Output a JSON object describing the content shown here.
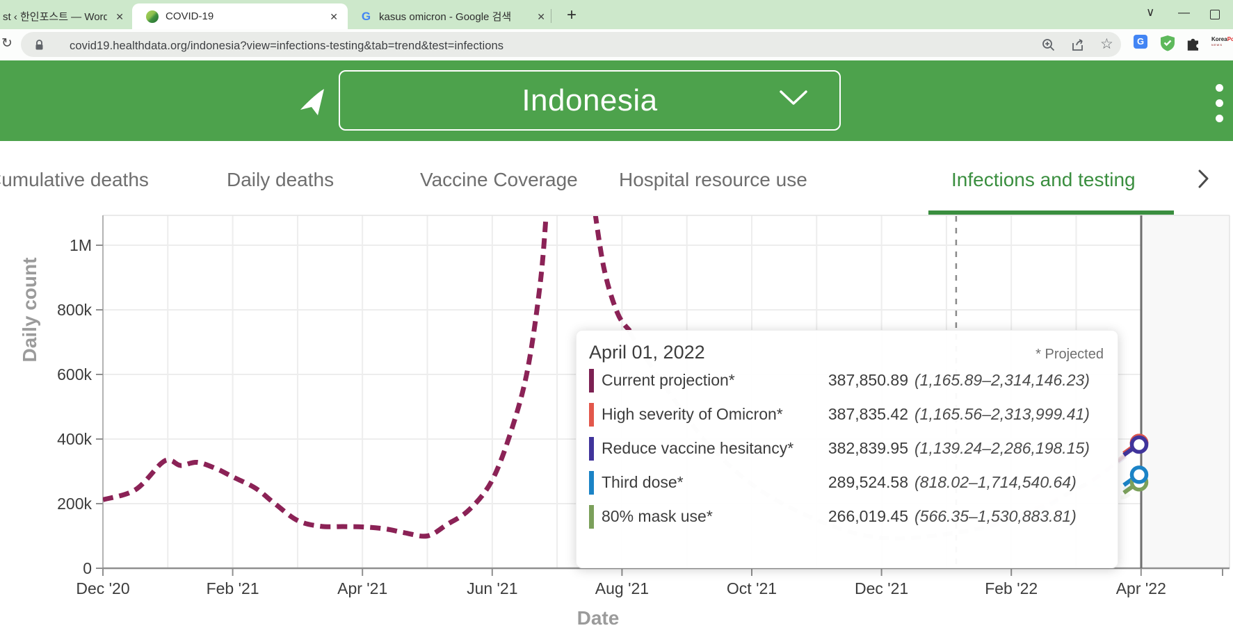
{
  "browser": {
    "tabs": [
      {
        "title": "st ‹ 한인포스트 — WordP",
        "close": "✕"
      },
      {
        "title": "COVID-19",
        "close": "✕"
      },
      {
        "title": "kasus omicron - Google 검색",
        "close": "✕"
      }
    ],
    "new_tab": "+",
    "window_controls": {
      "tab_search": "∨",
      "minimize": "—"
    },
    "address": {
      "reload": "↻",
      "url": "covid19.healthdata.org/indonesia?view=infections-testing&tab=trend&test=infections",
      "bookmark_star": "☆",
      "translate_glyph": "G",
      "koreapost_line1": "Korea",
      "koreapost_line1b": "Post",
      "koreapost_line2": "NEWS"
    }
  },
  "header": {
    "location": "Indonesia"
  },
  "nav": {
    "items": [
      {
        "label": "Cumulative deaths"
      },
      {
        "label": "Daily deaths"
      },
      {
        "label": "Vaccine Coverage"
      },
      {
        "label": "Hospital resource use"
      },
      {
        "label": "Infections and testing"
      }
    ],
    "active_index": 4
  },
  "chart_data": {
    "type": "line",
    "xlabel": "Date",
    "ylabel": "Daily count",
    "x_ticks": [
      "Dec '20",
      "Feb '21",
      "Apr '21",
      "Jun '21",
      "Aug '21",
      "Oct '21",
      "Dec '21",
      "Feb '22",
      "Apr '22"
    ],
    "y_ticks": [
      {
        "label": "0",
        "value": 0
      },
      {
        "label": "200k",
        "value": 200000
      },
      {
        "label": "400k",
        "value": 400000
      },
      {
        "label": "600k",
        "value": 600000
      },
      {
        "label": "800k",
        "value": 800000
      },
      {
        "label": "1M",
        "value": 1000000
      }
    ],
    "ylim": [
      0,
      1093000
    ],
    "grid": true,
    "today_line_month": 13.15,
    "series": [
      {
        "name": "Current projection",
        "color": "#8b2256",
        "style": "dashed",
        "points": [
          [
            0,
            212000
          ],
          [
            0.5,
            243000
          ],
          [
            0.9,
            325000
          ],
          [
            1.05,
            333000
          ],
          [
            1.2,
            318000
          ],
          [
            1.45,
            328000
          ],
          [
            1.75,
            308000
          ],
          [
            2.0,
            283000
          ],
          [
            2.35,
            248000
          ],
          [
            2.65,
            200000
          ],
          [
            3.0,
            148000
          ],
          [
            3.35,
            130000
          ],
          [
            3.7,
            129000
          ],
          [
            4.0,
            128000
          ],
          [
            4.35,
            122000
          ],
          [
            4.65,
            110000
          ],
          [
            5.0,
            100000
          ],
          [
            5.3,
            135000
          ],
          [
            5.65,
            182000
          ],
          [
            6.0,
            273000
          ],
          [
            6.3,
            430000
          ],
          [
            6.55,
            620000
          ],
          [
            6.75,
            900000
          ],
          [
            6.85,
            1150000
          ]
        ],
        "points_after_peak": [
          [
            7.55,
            1150000
          ],
          [
            7.72,
            930000
          ],
          [
            7.93,
            790000
          ],
          [
            8.12,
            735000
          ]
        ],
        "note": "peak exceeds chart top between Jul and early Aug 2021; curve hidden under tooltip after Aug 2021"
      }
    ],
    "scenario_endpoints_apr_01_2022": [
      {
        "name": "Current projection",
        "value": 387850.89,
        "color": "#7c2153"
      },
      {
        "name": "High severity of Omicron",
        "value": 387835.42,
        "color": "#e2574b"
      },
      {
        "name": "Reduce vaccine hesitancy",
        "value": 382839.95,
        "color": "#40349b"
      },
      {
        "name": "Third dose",
        "value": 289524.58,
        "color": "#1b83c6"
      },
      {
        "name": "80% mask use",
        "value": 266019.45,
        "color": "#7ba05b"
      }
    ]
  },
  "tooltip": {
    "date": "April 01, 2022",
    "projected_note": "* Projected",
    "rows": [
      {
        "color": "#7c2153",
        "label": "Current projection*",
        "value": "387,850.89",
        "range": "(1,165.89–2,314,146.23)",
        "value_num": 387850.89
      },
      {
        "color": "#e2574b",
        "label": "High severity of Omicron*",
        "value": "387,835.42",
        "range": "(1,165.56–2,313,999.41)",
        "value_num": 387835.42
      },
      {
        "color": "#40349b",
        "label": "Reduce vaccine hesitancy*",
        "value": "382,839.95",
        "range": "(1,139.24–2,286,198.15)",
        "value_num": 382839.95
      },
      {
        "color": "#1b83c6",
        "label": "Third dose*",
        "value": "289,524.58",
        "range": "(818.02–1,714,540.64)",
        "value_num": 289524.58
      },
      {
        "color": "#7ba05b",
        "label": "80% mask use*",
        "value": "266,019.45",
        "range": "(566.35–1,530,883.81)",
        "value_num": 266019.45
      }
    ]
  }
}
